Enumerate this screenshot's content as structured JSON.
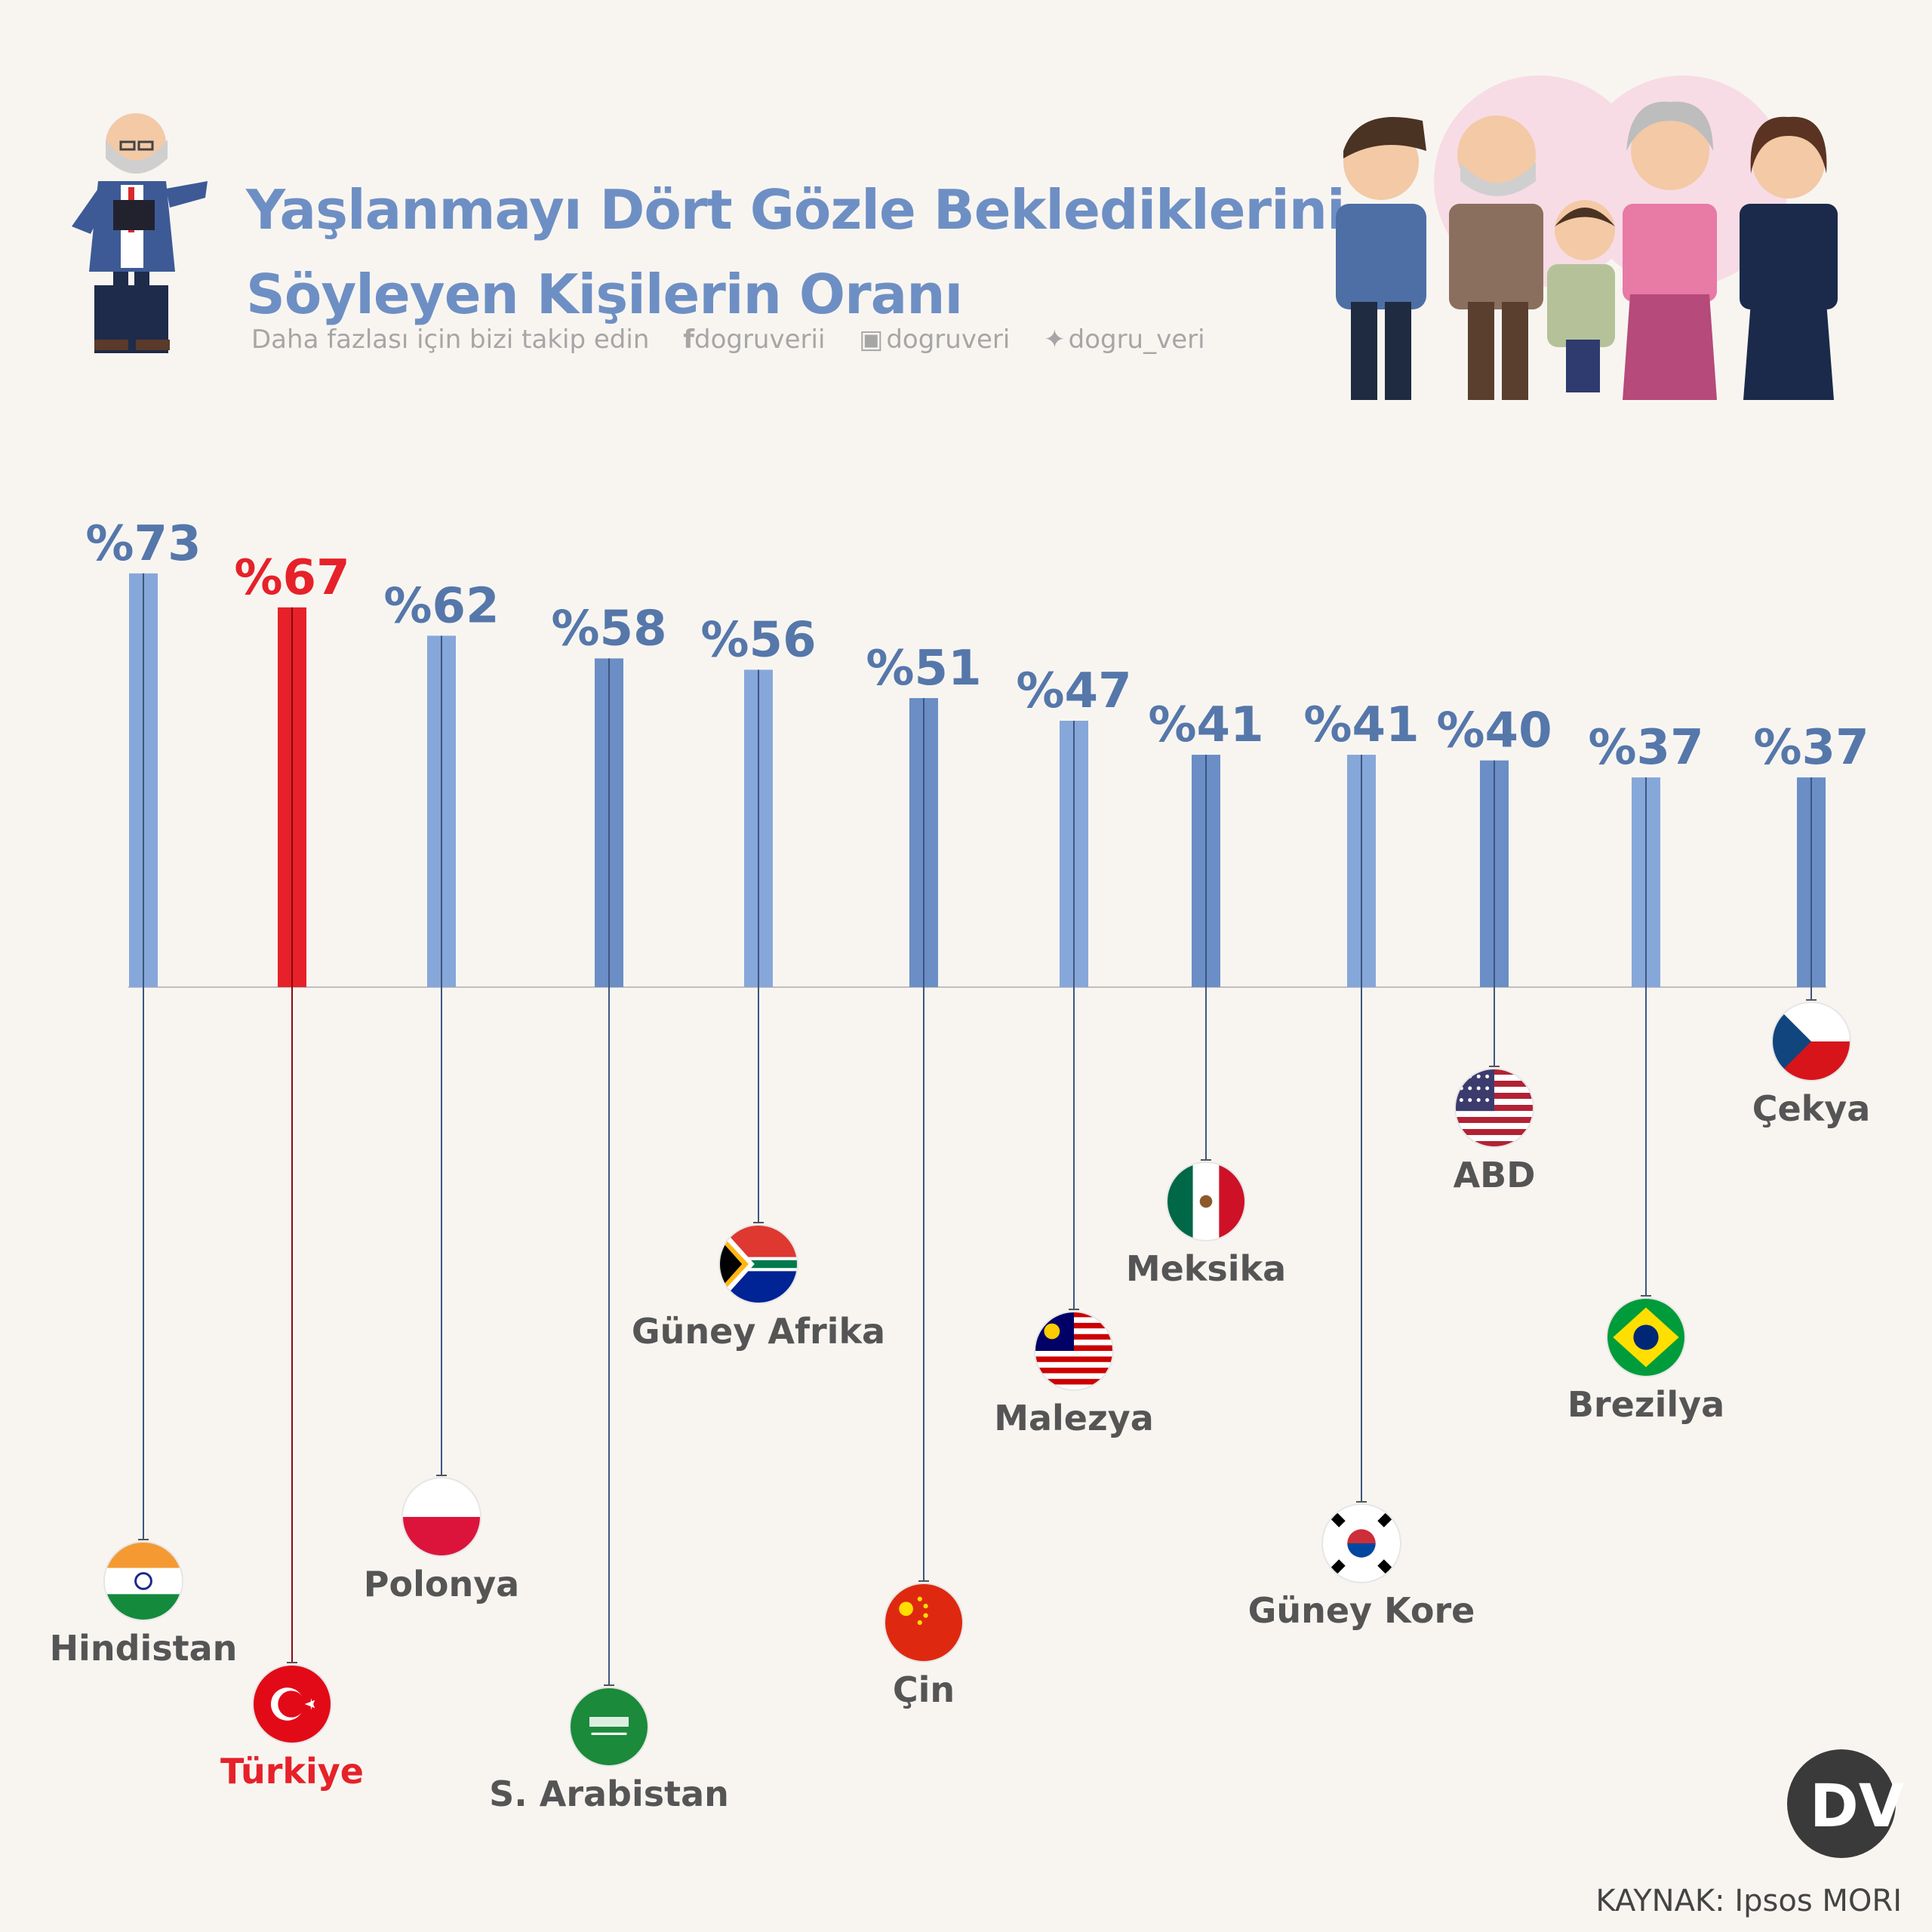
{
  "header": {
    "title_line1": "Yaşlanmayı Dört Gözle Beklediklerini",
    "title_line2": "Söyleyen Kişilerin Oranı",
    "follow_text": "Daha fazlası için bizi takip edin",
    "social": [
      {
        "icon": "facebook-icon",
        "handle": "dogruverii"
      },
      {
        "icon": "instagram-icon",
        "handle": "dogruveri"
      },
      {
        "icon": "twitter-icon",
        "handle": "dogru_veri"
      }
    ]
  },
  "colors": {
    "bar_light": "#86a7d9",
    "bar_dark": "#6a8ec5",
    "highlight": "#e62129",
    "value_label": "#5577aa",
    "country_label": "#555555",
    "title": "#6e8fc4"
  },
  "chart_data": {
    "type": "bar",
    "title": "Yaşlanmayı Dört Gözle Beklediklerini Söyleyen Kişilerin Oranı",
    "xlabel": "",
    "ylabel": "",
    "ylim": [
      0,
      80
    ],
    "grid": false,
    "highlight_category": "Türkiye",
    "value_prefix": "%",
    "categories": [
      "Hindistan",
      "Türkiye",
      "Polonya",
      "S. Arabistan",
      "Güney Afrika",
      "Çin",
      "Malezya",
      "Meksika",
      "Güney Kore",
      "ABD",
      "Brezilya",
      "Çekya"
    ],
    "values": [
      73,
      67,
      62,
      58,
      56,
      51,
      47,
      41,
      41,
      40,
      37,
      37
    ],
    "value_labels": [
      "%73",
      "%67",
      "%62",
      "%58",
      "%56",
      "%51",
      "%47",
      "%41",
      "%41",
      "%40",
      "%37",
      "%37"
    ],
    "flags": [
      "india-flag-icon",
      "turkey-flag-icon",
      "poland-flag-icon",
      "saudi-arabia-flag-icon",
      "south-africa-flag-icon",
      "china-flag-icon",
      "malaysia-flag-icon",
      "mexico-flag-icon",
      "south-korea-flag-icon",
      "usa-flag-icon",
      "brazil-flag-icon",
      "czechia-flag-icon"
    ]
  },
  "source": "KAYNAK: Ipsos MORI",
  "logo": {
    "icon": "dogruluk-veri-logo-icon",
    "text": "DV"
  }
}
